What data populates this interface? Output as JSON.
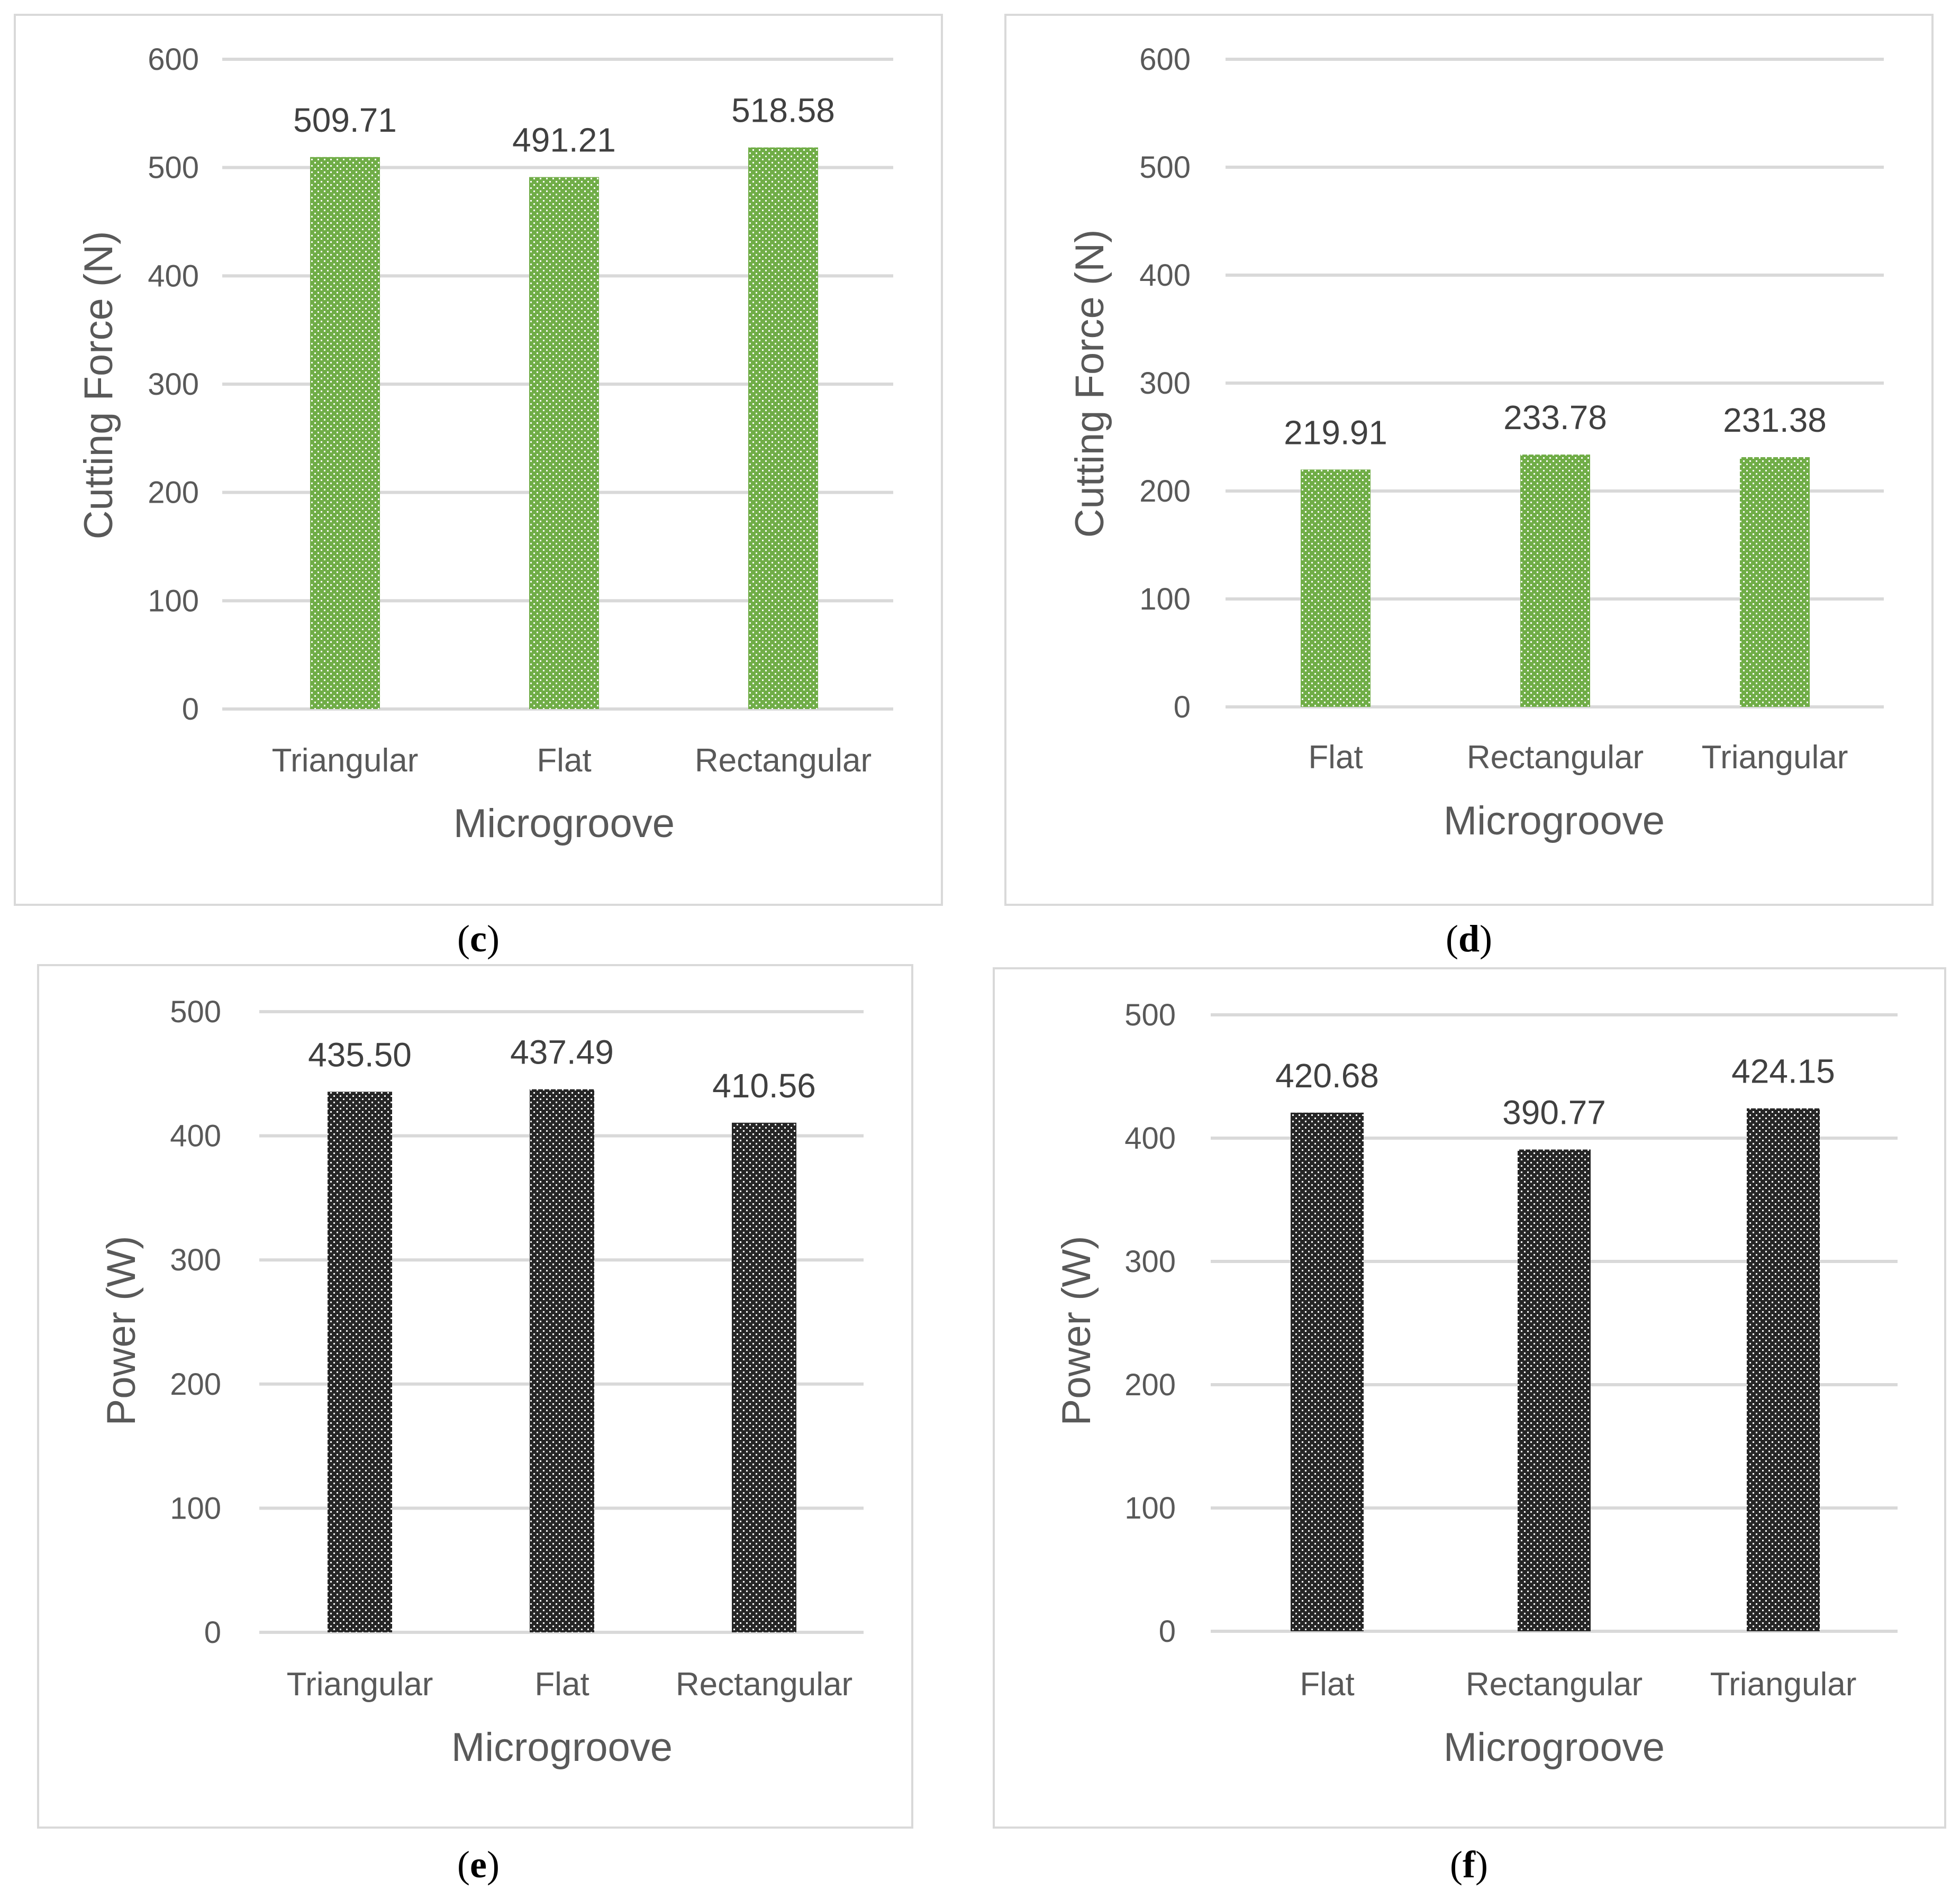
{
  "chart_data": [
    {
      "id": "c",
      "type": "bar",
      "panel_label": "c",
      "categories": [
        "Triangular",
        "Flat",
        "Rectangular"
      ],
      "values": [
        509.71,
        491.21,
        518.58
      ],
      "value_labels": [
        "509.71",
        "491.21",
        "518.58"
      ],
      "xlabel": "Microgroove",
      "ylabel": "Cutting Force (N)",
      "ylim": [
        0,
        600
      ],
      "yticks": [
        0,
        100,
        200,
        300,
        400,
        500,
        600
      ],
      "ytick_labels": [
        "0",
        "100",
        "200",
        "300",
        "400",
        "500",
        "600"
      ],
      "grid": true,
      "bar_color": "#70ad47",
      "pattern": "dotted"
    },
    {
      "id": "d",
      "type": "bar",
      "panel_label": "d",
      "categories": [
        "Flat",
        "Rectangular",
        "Triangular"
      ],
      "values": [
        219.91,
        233.78,
        231.38
      ],
      "value_labels": [
        "219.91",
        "233.78",
        "231.38"
      ],
      "xlabel": "Microgroove",
      "ylabel": "Cutting Force (N)",
      "ylim": [
        0,
        600
      ],
      "yticks": [
        0,
        100,
        200,
        300,
        400,
        500,
        600
      ],
      "ytick_labels": [
        "0",
        "100",
        "200",
        "300",
        "400",
        "500",
        "600"
      ],
      "grid": true,
      "bar_color": "#70ad47",
      "pattern": "dotted"
    },
    {
      "id": "e",
      "type": "bar",
      "panel_label": "e",
      "categories": [
        "Triangular",
        "Flat",
        "Rectangular"
      ],
      "values": [
        435.5,
        437.49,
        410.56
      ],
      "value_labels": [
        "435.50",
        "437.49",
        "410.56"
      ],
      "xlabel": "Microgroove",
      "ylabel": "Power (W)",
      "ylim": [
        0,
        500
      ],
      "yticks": [
        0,
        100,
        200,
        300,
        400,
        500
      ],
      "ytick_labels": [
        "0",
        "100",
        "200",
        "300",
        "400",
        "500"
      ],
      "grid": true,
      "bar_color": "#262626",
      "pattern": "dotted"
    },
    {
      "id": "f",
      "type": "bar",
      "panel_label": "f",
      "categories": [
        "Flat",
        "Rectangular",
        "Triangular"
      ],
      "values": [
        420.68,
        390.77,
        424.15
      ],
      "value_labels": [
        "420.68",
        "390.77",
        "424.15"
      ],
      "xlabel": "Microgroove",
      "ylabel": "Power (W)",
      "ylim": [
        0,
        500
      ],
      "yticks": [
        0,
        100,
        200,
        300,
        400,
        500
      ],
      "ytick_labels": [
        "0",
        "100",
        "200",
        "300",
        "400",
        "500"
      ],
      "grid": true,
      "bar_color": "#262626",
      "pattern": "dotted"
    }
  ]
}
